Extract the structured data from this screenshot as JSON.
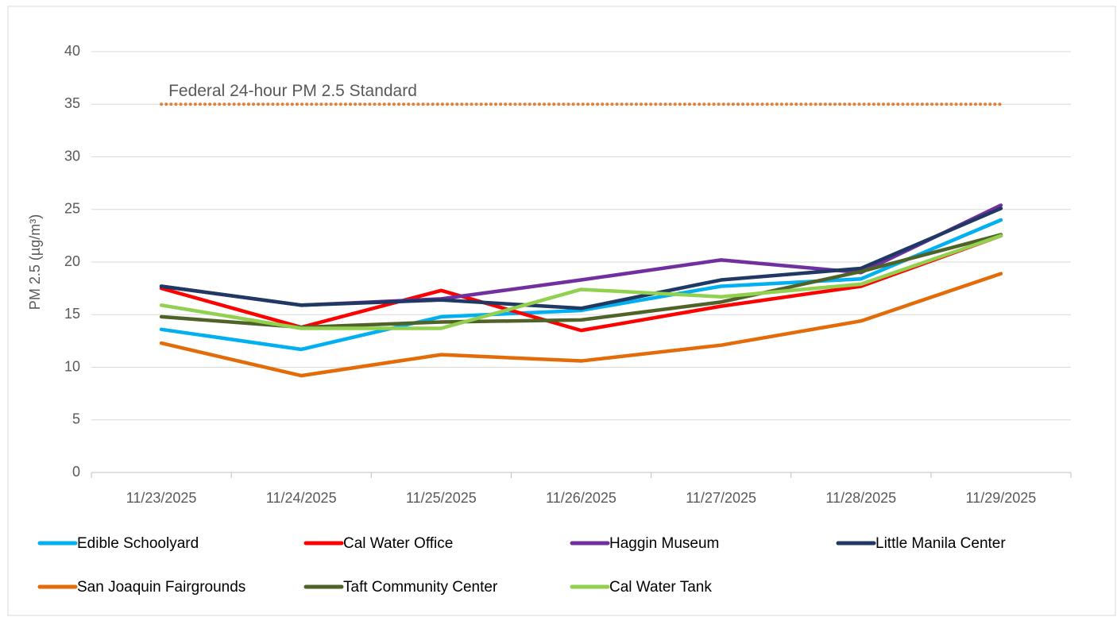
{
  "chart_data": {
    "type": "line",
    "y_label": "PM 2.5 (µg/m³)",
    "categories": [
      "11/23/2025",
      "11/24/2025",
      "11/25/2025",
      "11/26/2025",
      "11/27/2025",
      "11/28/2025",
      "11/29/2025"
    ],
    "series": [
      {
        "name": "Edible Schoolyard",
        "color": "#00b0f0",
        "values": [
          13.6,
          11.7,
          14.8,
          15.4,
          17.7,
          18.4,
          24.0
        ]
      },
      {
        "name": "Cal Water Office",
        "color": "#ff0000",
        "values": [
          17.5,
          13.8,
          17.3,
          13.5,
          15.8,
          17.7,
          22.5
        ]
      },
      {
        "name": "Haggin Museum",
        "color": "#7030a0",
        "values": [
          17.7,
          15.9,
          16.5,
          18.3,
          20.2,
          19.0,
          25.4
        ]
      },
      {
        "name": "Little Manila Center",
        "color": "#1f3864",
        "values": [
          17.7,
          15.9,
          16.4,
          15.6,
          18.3,
          19.4,
          25.1
        ]
      },
      {
        "name": "San Joaquin Fairgrounds",
        "color": "#e36c09",
        "values": [
          12.3,
          9.2,
          11.2,
          10.6,
          12.1,
          14.4,
          18.9
        ]
      },
      {
        "name": "Taft Community Center",
        "color": "#4f6228",
        "values": [
          14.8,
          13.8,
          14.3,
          14.5,
          16.2,
          19.1,
          22.6
        ]
      },
      {
        "name": "Cal Water Tank",
        "color": "#92d050",
        "values": [
          15.9,
          13.7,
          13.7,
          17.4,
          16.7,
          17.9,
          22.5
        ]
      }
    ],
    "reference_lines": [
      {
        "value": 35,
        "label": "Federal 24-hour PM 2.5 Standard",
        "color": "#e0813a"
      }
    ],
    "ylim": [
      0,
      40
    ],
    "yticks": [
      0,
      5,
      10,
      15,
      20,
      25,
      30,
      35,
      40
    ],
    "grid": true,
    "legend": "bottom"
  }
}
